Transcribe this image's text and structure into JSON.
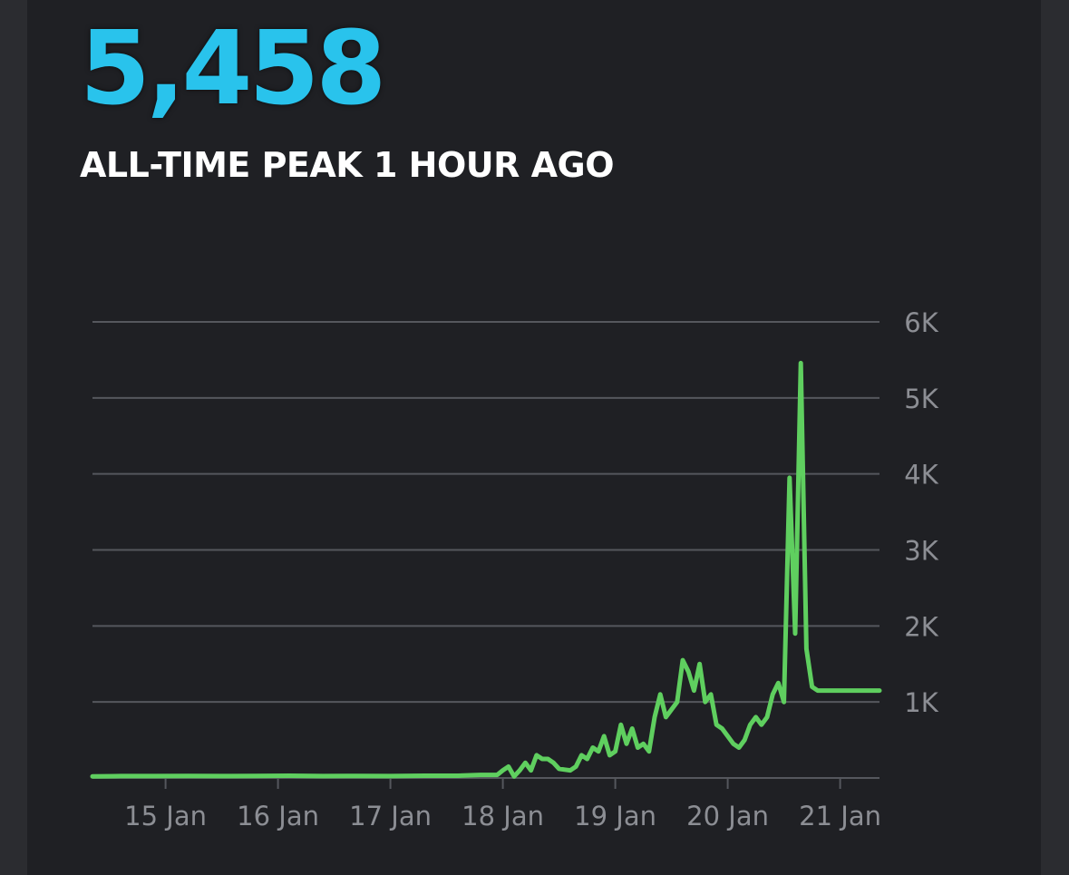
{
  "header": {
    "peak_value": "5,458",
    "peak_label": "ALL-TIME PEAK 1 HOUR AGO"
  },
  "colors": {
    "background": "#1f2024",
    "accent": "#29c3ec",
    "line": "#5fcf5f",
    "grid": "#55575d",
    "tick_text": "#8c8e94"
  },
  "chart_data": {
    "type": "line",
    "title": "",
    "xlabel": "",
    "ylabel": "",
    "x_ticks": [
      "15 Jan",
      "16 Jan",
      "17 Jan",
      "18 Jan",
      "19 Jan",
      "20 Jan",
      "21 Jan"
    ],
    "y_ticks": [
      "1K",
      "2K",
      "3K",
      "4K",
      "5K",
      "6K"
    ],
    "ylim": [
      0,
      6000
    ],
    "xlim": [
      14.35,
      21.35
    ],
    "grid": true,
    "series": [
      {
        "x": [
          14.35,
          14.6,
          14.9,
          15.2,
          15.5,
          15.8,
          16.1,
          16.4,
          16.7,
          17.0,
          17.3,
          17.6,
          17.8,
          17.95,
          18.0,
          18.05,
          18.1,
          18.15,
          18.2,
          18.25,
          18.3,
          18.35,
          18.4,
          18.45,
          18.5,
          18.55,
          18.6,
          18.65,
          18.7,
          18.75,
          18.8,
          18.85,
          18.9,
          18.95,
          19.0,
          19.05,
          19.1,
          19.15,
          19.2,
          19.25,
          19.3,
          19.35,
          19.4,
          19.45,
          19.5,
          19.55,
          19.6,
          19.65,
          19.7,
          19.75,
          19.8,
          19.85,
          19.9,
          19.95,
          20.0,
          20.05,
          20.1,
          20.15,
          20.2,
          20.25,
          20.3,
          20.35,
          20.4,
          20.45,
          20.5,
          20.55,
          20.6,
          20.65,
          20.7,
          20.75,
          20.8,
          20.85,
          20.9,
          20.95,
          21.0,
          21.04,
          21.08,
          21.12,
          21.16,
          21.2,
          21.24,
          21.28,
          21.3,
          21.32,
          21.34,
          21.35
        ],
        "y": [
          20,
          25,
          25,
          28,
          25,
          28,
          30,
          25,
          28,
          25,
          30,
          30,
          40,
          40,
          100,
          150,
          20,
          100,
          200,
          100,
          300,
          250,
          250,
          200,
          120,
          110,
          100,
          150,
          300,
          250,
          400,
          350,
          550,
          300,
          350,
          700,
          450,
          650,
          400,
          450,
          350,
          800,
          1100,
          800,
          900,
          1000,
          1550,
          1400,
          1150,
          1500,
          1000,
          1100,
          700,
          650,
          550,
          450,
          400,
          500,
          700,
          800,
          700,
          800,
          1100,
          1250,
          1000,
          3950,
          1900,
          5458,
          1700,
          1200,
          1150,
          1150,
          1150,
          1150,
          1150,
          1150,
          1150,
          1150,
          1150,
          1150,
          1150,
          1150,
          1150,
          1150,
          1150,
          1150
        ]
      }
    ]
  }
}
